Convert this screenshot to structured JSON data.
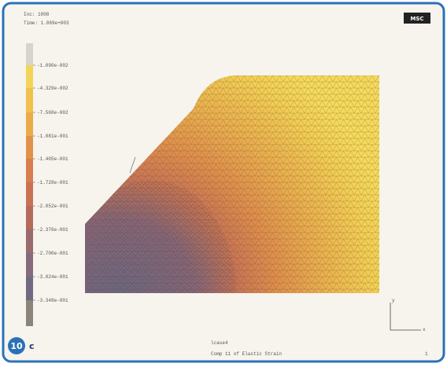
{
  "header": {
    "inc": "Inc:   1008",
    "time": "Time:   1.089e+003"
  },
  "logo": "MSC",
  "legend": {
    "labels": [
      "-1.090e-002",
      "-4.329e-002",
      "-7.568e-002",
      "-1.081e-001",
      "-1.405e-001",
      "-1.728e-001",
      "-2.052e-001",
      "-2.376e-001",
      "-2.700e-001",
      "-3.024e-001",
      "-3.348e-001"
    ]
  },
  "axes": {
    "x": "x",
    "y": "y"
  },
  "badge": {
    "number": "10",
    "letter": "c"
  },
  "footer": {
    "loadcase": "lcase4",
    "caption": "Comp 11 of Elastic Strain",
    "page": "1"
  }
}
